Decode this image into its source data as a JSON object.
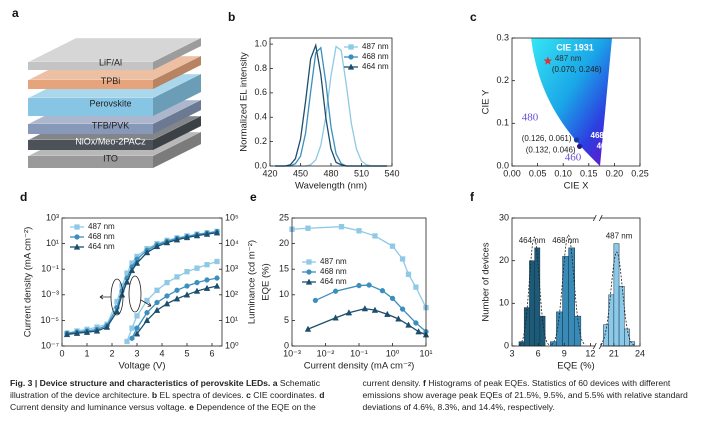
{
  "diagram": {
    "label": "a",
    "layers": [
      {
        "name": "LiF/Al",
        "color": "#c4c4c4"
      },
      {
        "name": "TPBi",
        "color": "#e6a47c"
      },
      {
        "name": "Perovskite",
        "color": "#86c6e4"
      },
      {
        "name": "TFB/PVK",
        "color": "#8898b8"
      },
      {
        "name": "NiOx/Meo-2PACz",
        "color": "#4c5258"
      },
      {
        "name": "ITO",
        "color": "#9a9a9a"
      }
    ]
  },
  "chart_data": [
    {
      "label": "b",
      "type": "line",
      "xlabel": "Wavelength (nm)",
      "ylabel": "Normalized EL intensity",
      "x": [
        425,
        430,
        435,
        440,
        445,
        450,
        455,
        460,
        465,
        470,
        475,
        480,
        485,
        490,
        495,
        500,
        505,
        510,
        515,
        520,
        525,
        530,
        535
      ],
      "xlim": [
        420,
        540
      ],
      "xticks": [
        420,
        450,
        480,
        510,
        540
      ],
      "ylim": [
        0,
        1.05
      ],
      "yticks": [
        {
          "value": 0,
          "label": "0.0"
        },
        0.2,
        0.4,
        0.6,
        0.8,
        {
          "value": 1,
          "label": "1.0"
        }
      ],
      "legend": "upper right",
      "markers": false,
      "series": [
        {
          "name": "487 nm",
          "color": "#8ec9e6",
          "marker": "square",
          "values": [
            0,
            0,
            0,
            0,
            0,
            0,
            0,
            0.01,
            0.05,
            0.17,
            0.41,
            0.74,
            0.98,
            0.95,
            0.67,
            0.35,
            0.14,
            0.04,
            0.01,
            0,
            0,
            0,
            0
          ]
        },
        {
          "name": "468 nm",
          "color": "#3b8fbd",
          "marker": "circle",
          "values": [
            0,
            0,
            0,
            0,
            0.02,
            0.08,
            0.27,
            0.61,
            0.93,
            0.97,
            0.68,
            0.32,
            0.1,
            0.02,
            0,
            0,
            0,
            0,
            0,
            0,
            0,
            0,
            0
          ]
        },
        {
          "name": "464 nm",
          "color": "#1c4e6e",
          "marker": "triangle",
          "values": [
            0,
            0,
            0,
            0.01,
            0.06,
            0.22,
            0.53,
            0.88,
            0.99,
            0.75,
            0.39,
            0.14,
            0.03,
            0.01,
            0,
            0,
            0,
            0,
            0,
            0,
            0,
            0,
            0
          ]
        }
      ]
    },
    {
      "label": "c",
      "type": "scatter",
      "title": "CIE 1931",
      "xlabel": "CIE X",
      "ylabel": "CIE Y",
      "xlim": [
        0,
        0.25
      ],
      "xticks": [
        {
          "value": 0,
          "label": "0.00"
        },
        0.05,
        {
          "value": 0.1,
          "label": "0.10"
        },
        0.15,
        {
          "value": 0.2,
          "label": "0.20"
        },
        0.25
      ],
      "ylim": [
        0,
        0.3
      ],
      "yticks": [
        {
          "value": 0,
          "label": "0.0"
        },
        0.1,
        0.2,
        0.3
      ],
      "annotations": [
        "480",
        "460"
      ],
      "series": [
        {
          "name": "487 nm",
          "color": "#e03030",
          "marker": "star",
          "x": [
            0.07
          ],
          "values": [
            0.246
          ],
          "labels": [
            "(0.070, 0.246)"
          ]
        },
        {
          "name": "468 nm",
          "color": "#1838a0",
          "marker": "circle",
          "x": [
            0.126
          ],
          "values": [
            0.061
          ],
          "labels": [
            "(0.126, 0.061)"
          ]
        },
        {
          "name": "464 nm",
          "color": "#2a1890",
          "marker": "circle",
          "x": [
            0.132
          ],
          "values": [
            0.046
          ],
          "labels": [
            "(0.132, 0.046)"
          ]
        }
      ]
    },
    {
      "label": "d",
      "type": "line",
      "xlabel": "Voltage (V)",
      "ylabel": "Current density (mA cm⁻²)",
      "y2label": "Luminance (cd m⁻²)",
      "x": [
        0.2,
        0.6,
        1.0,
        1.4,
        1.8,
        2.2,
        2.4,
        2.6,
        2.8,
        3.0,
        3.4,
        3.8,
        4.2,
        4.6,
        5.0,
        5.4,
        5.8,
        6.2
      ],
      "xlim": [
        0,
        6.4
      ],
      "xticks": [
        0,
        1,
        2,
        3,
        4,
        5,
        6
      ],
      "yscale": "log",
      "ylim": [
        1e-07,
        1000
      ],
      "yticks": [
        {
          "value": 1e-07,
          "label": "10⁻⁷"
        },
        {
          "value": 1e-05,
          "label": "10⁻⁵"
        },
        {
          "value": 0.001,
          "label": "10⁻³"
        },
        {
          "value": 0.1,
          "label": "10⁻¹"
        },
        {
          "value": 10,
          "label": "10¹"
        },
        {
          "value": 1000,
          "label": "10³"
        }
      ],
      "y2scale": "log",
      "y2lim": [
        1,
        100000
      ],
      "y2ticks": [
        {
          "value": 1,
          "label": "10⁰"
        },
        {
          "value": 10,
          "label": "10¹"
        },
        {
          "value": 100,
          "label": "10²"
        },
        {
          "value": 1000,
          "label": "10³"
        },
        {
          "value": 10000,
          "label": "10⁴"
        },
        {
          "value": 100000,
          "label": "10⁵"
        }
      ],
      "legend": "upper left",
      "markers": true,
      "series": [
        {
          "name": "487 nm",
          "color": "#8ec9e6",
          "marker": "square",
          "values": [
            1e-06,
            1.5e-06,
            2e-06,
            3e-06,
            5e-06,
            0.0003,
            0.005,
            0.05,
            0.3,
            1,
            4,
            10,
            18,
            28,
            40,
            55,
            70,
            90
          ]
        },
        {
          "name": "468 nm",
          "color": "#3b8fbd",
          "marker": "circle",
          "values": [
            1e-06,
            1.2e-06,
            1.5e-06,
            2e-06,
            4e-06,
            0.0001,
            0.002,
            0.02,
            0.15,
            0.6,
            3,
            8,
            15,
            25,
            35,
            50,
            65,
            85
          ]
        },
        {
          "name": "464 nm",
          "color": "#1c4e6e",
          "marker": "triangle",
          "values": [
            8e-07,
            1e-06,
            1.2e-06,
            1.5e-06,
            3e-06,
            5e-05,
            0.001,
            0.01,
            0.08,
            0.3,
            2,
            6,
            12,
            20,
            30,
            42,
            55,
            70
          ]
        },
        {
          "color": "#8ec9e6",
          "marker": "square",
          "axis": "y2",
          "values": [
            null,
            null,
            null,
            null,
            null,
            null,
            null,
            1.5,
            5,
            15,
            60,
            150,
            300,
            500,
            800,
            1100,
            1500,
            2000
          ]
        },
        {
          "color": "#3b8fbd",
          "marker": "circle",
          "axis": "y2",
          "values": [
            null,
            null,
            null,
            null,
            null,
            null,
            null,
            null,
            2,
            5,
            20,
            50,
            90,
            150,
            220,
            300,
            380,
            450
          ]
        },
        {
          "color": "#1c4e6e",
          "marker": "triangle",
          "axis": "y2",
          "values": [
            null,
            null,
            null,
            null,
            null,
            null,
            null,
            null,
            null,
            3,
            10,
            25,
            45,
            70,
            100,
            140,
            180,
            220
          ]
        }
      ]
    },
    {
      "label": "e",
      "type": "line",
      "xlabel": "Current density (mA cm⁻²)",
      "ylabel": "EQE (%)",
      "xscale": "log",
      "xlim": [
        0.001,
        10
      ],
      "xticks": [
        {
          "value": 0.001,
          "label": "10⁻³"
        },
        {
          "value": 0.01,
          "label": "10⁻²"
        },
        {
          "value": 0.1,
          "label": "10⁻¹"
        },
        {
          "value": 1,
          "label": "10⁰"
        },
        {
          "value": 10,
          "label": "10¹"
        }
      ],
      "ylim": [
        0,
        25
      ],
      "yticks": [
        0,
        5,
        10,
        15,
        20,
        25
      ],
      "legend": "center left",
      "markers": true,
      "series": [
        {
          "name": "487 nm",
          "color": "#8ec9e6",
          "marker": "square",
          "x": [
            0.001,
            0.003,
            0.03,
            0.1,
            0.3,
            1,
            2,
            3,
            5,
            10
          ],
          "values": [
            22.8,
            23,
            23.3,
            22.5,
            21.5,
            19.5,
            17,
            14,
            11.5,
            7.5
          ]
        },
        {
          "name": "468 nm",
          "color": "#3b8fbd",
          "marker": "circle",
          "x": [
            0.005,
            0.02,
            0.1,
            0.2,
            0.5,
            1,
            2,
            5,
            10
          ],
          "values": [
            8.9,
            10.7,
            11.8,
            11.9,
            10.8,
            9.3,
            7.2,
            4.5,
            2.8
          ]
        },
        {
          "name": "464 nm",
          "color": "#1c4e6e",
          "marker": "triangle",
          "x": [
            0.003,
            0.02,
            0.05,
            0.15,
            0.3,
            0.7,
            1.5,
            3,
            6,
            10
          ],
          "values": [
            3.3,
            5.5,
            6.5,
            7.3,
            7,
            6.2,
            5.3,
            4.1,
            2.8,
            2.2
          ]
        }
      ]
    },
    {
      "label": "f",
      "type": "histogram",
      "xlabel": "EQE (%)",
      "ylabel": "Number of devices",
      "xlims": [
        [
          3,
          12.5
        ],
        [
          19.5,
          24
        ]
      ],
      "xticks": [
        3,
        6,
        9,
        12,
        21,
        24
      ],
      "ylim": [
        0,
        30
      ],
      "yticks": [
        0,
        10,
        20,
        30
      ],
      "fit": true,
      "series": [
        {
          "name": "464 nm",
          "color": "#1c5a78",
          "bins": [
            3.8,
            4.4,
            5,
            5.6,
            6.2,
            6.8
          ],
          "values": [
            1,
            9,
            20,
            23,
            7
          ]
        },
        {
          "name": "468 nm",
          "color": "#3a8ab8",
          "bins": [
            7.4,
            8.1,
            8.8,
            9.5,
            10.2,
            10.9
          ],
          "values": [
            1,
            8,
            21,
            23,
            7
          ]
        },
        {
          "name": "487 nm",
          "color": "#8cc8e8",
          "bins": [
            19.8,
            20.4,
            21,
            21.6,
            22.2,
            22.8,
            23.4
          ],
          "values": [
            5,
            12,
            24,
            14,
            4,
            1
          ]
        }
      ]
    }
  ],
  "caption": [
    {
      "text": "Fig. 3 | Device structure and characteristics of perovskite LEDs. a",
      "bold": true
    },
    {
      "text": " Schematic illustration of the device architecture. ",
      "bold": false
    },
    {
      "text": "b",
      "bold": true
    },
    {
      "text": " EL spectra of devices. ",
      "bold": false
    },
    {
      "text": "c",
      "bold": true
    },
    {
      "text": " CIE coordinates. ",
      "bold": false
    },
    {
      "text": "d",
      "bold": true
    },
    {
      "text": " Current density and luminance versus voltage. ",
      "bold": false
    },
    {
      "text": "e",
      "bold": true
    },
    {
      "text": " Dependence of the EQE on the current density. ",
      "bold": false
    },
    {
      "text": "f",
      "bold": true
    },
    {
      "text": " Histograms of peak EQEs. Statistics of 60 devices with different emissions show average peak EQEs of 21.5%, 9.5%, and 5.5% with relative standard deviations of 4.6%, 8.3%, and 14.4%, respectively.",
      "bold": false
    }
  ]
}
